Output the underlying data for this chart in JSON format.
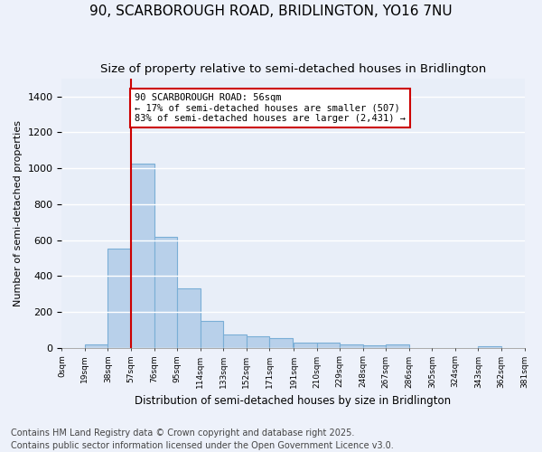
{
  "title": "90, SCARBOROUGH ROAD, BRIDLINGTON, YO16 7NU",
  "subtitle": "Size of property relative to semi-detached houses in Bridlington",
  "xlabel": "Distribution of semi-detached houses by size in Bridlington",
  "ylabel": "Number of semi-detached properties",
  "bar_color": "#b8d0ea",
  "bar_edge_color": "#7aaed6",
  "background_color": "#e8eef8",
  "grid_color": "#ffffff",
  "annotation_text": "90 SCARBOROUGH ROAD: 56sqm\n← 17% of semi-detached houses are smaller (507)\n83% of semi-detached houses are larger (2,431) →",
  "annotation_box_color": "#ffffff",
  "annotation_edge_color": "#cc0000",
  "vline_color": "#cc0000",
  "vline_x": 57,
  "bins": [
    0,
    19,
    38,
    57,
    76,
    95,
    114,
    133,
    152,
    171,
    191,
    210,
    229,
    248,
    267,
    286,
    305,
    324,
    343,
    362,
    381
  ],
  "bin_labels": [
    "0sqm",
    "19sqm",
    "38sqm",
    "57sqm",
    "76sqm",
    "95sqm",
    "114sqm",
    "133sqm",
    "152sqm",
    "171sqm",
    "191sqm",
    "210sqm",
    "229sqm",
    "248sqm",
    "267sqm",
    "286sqm",
    "305sqm",
    "324sqm",
    "343sqm",
    "362sqm",
    "381sqm"
  ],
  "bar_heights": [
    0,
    20,
    555,
    1025,
    620,
    330,
    150,
    75,
    65,
    55,
    30,
    30,
    20,
    15,
    18,
    0,
    0,
    0,
    10,
    0
  ],
  "ylim": [
    0,
    1500
  ],
  "yticks": [
    0,
    200,
    400,
    600,
    800,
    1000,
    1200,
    1400
  ],
  "footer": "Contains HM Land Registry data © Crown copyright and database right 2025.\nContains public sector information licensed under the Open Government Licence v3.0.",
  "title_fontsize": 11,
  "subtitle_fontsize": 9.5,
  "footer_fontsize": 7.0
}
